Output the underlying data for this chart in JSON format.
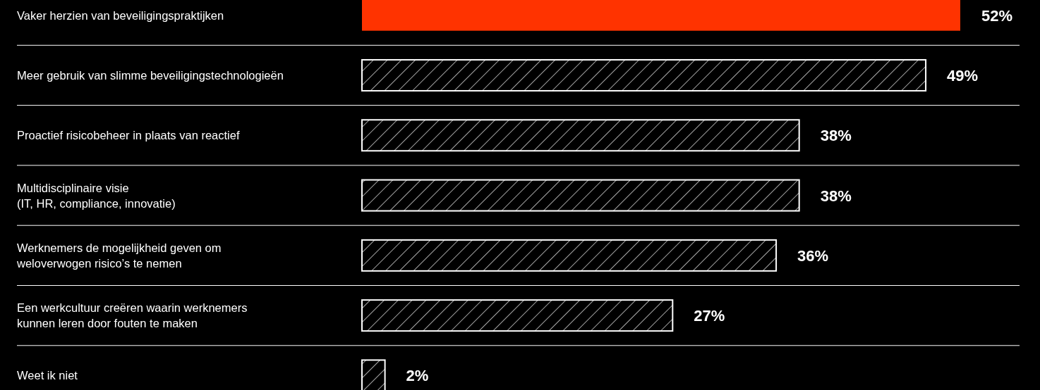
{
  "chart_data": {
    "type": "bar",
    "orientation": "horizontal",
    "categories": [
      "Vaker herzien van beveiligingspraktijken",
      "Meer gebruik van slimme beveiligingstechnologieën",
      "Proactief risicobeheer in plaats van reactief",
      "Multidisciplinaire visie\n(IT, HR, compliance, innovatie)",
      "Werknemers de mogelijkheid geven om\nweloverwogen risico’s te nemen",
      "Een werkcultuur creëren waarin werknemers\nkunnen leren door fouten te maken",
      "Weet ik niet"
    ],
    "values": [
      52,
      49,
      38,
      38,
      36,
      27,
      2
    ],
    "colors": [
      "#ff3300",
      "#ffffff",
      "#ffffff",
      "#ffffff",
      "#ffffff",
      "#ffffff",
      "#ffffff"
    ],
    "value_labels": [
      "52%",
      "49%",
      "38%",
      "38%",
      "36%",
      "27%",
      "2%"
    ]
  }
}
